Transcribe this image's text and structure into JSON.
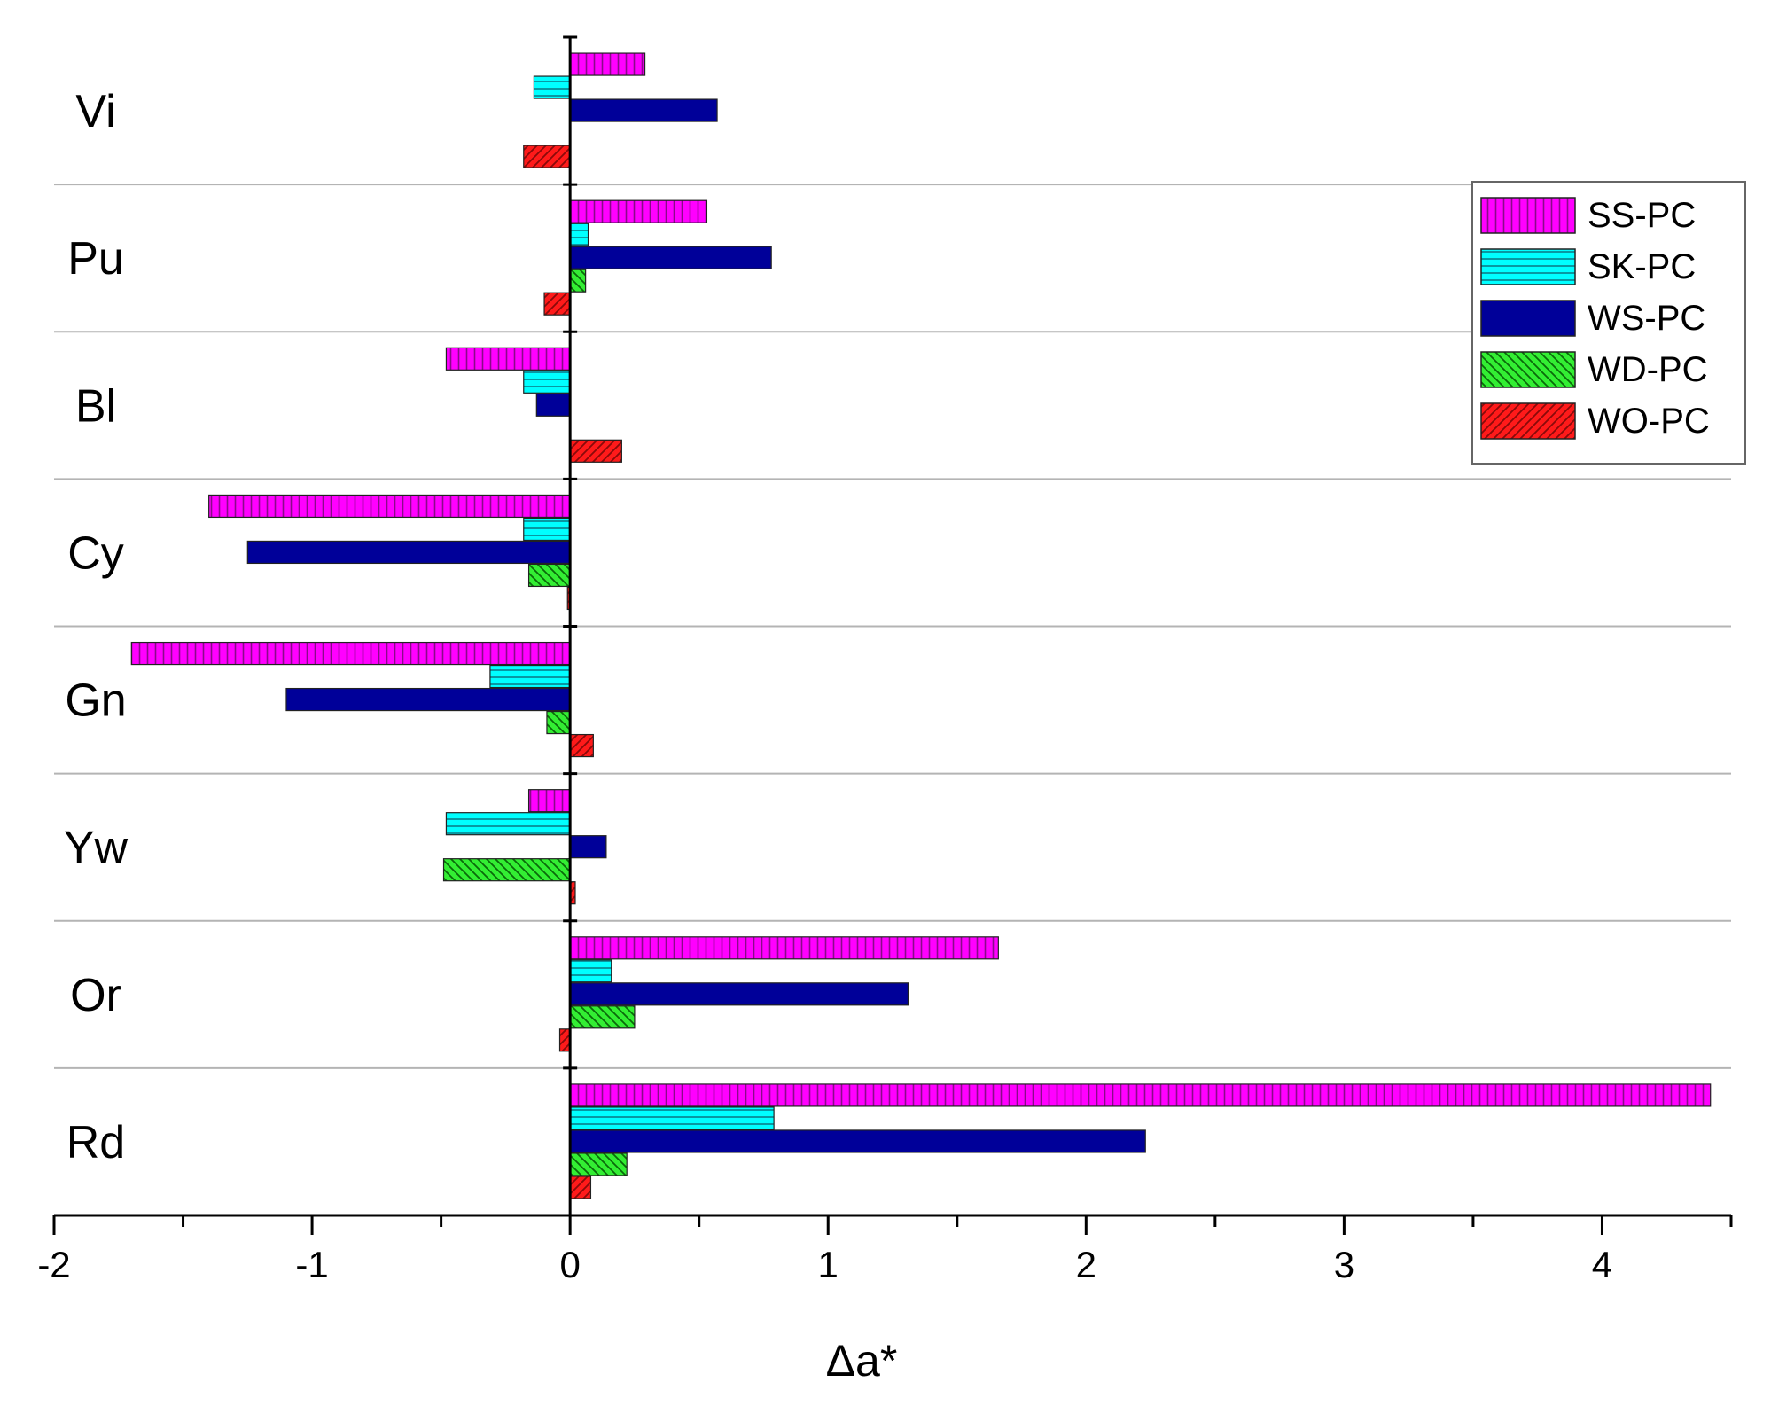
{
  "chart_data": {
    "type": "bar",
    "orientation": "horizontal",
    "xlabel": "Δa*",
    "xlim": [
      -2,
      4.5
    ],
    "xticks": [
      -2,
      -1,
      0,
      1,
      2,
      3,
      4
    ],
    "categories": [
      "Vi",
      "Pu",
      "Bl",
      "Cy",
      "Gn",
      "Yw",
      "Or",
      "Rd"
    ],
    "series": [
      {
        "name": "SS-PC",
        "color": "#ff00ff",
        "pattern": "vertical",
        "values": [
          0.29,
          0.53,
          -0.48,
          -1.4,
          -1.7,
          -0.16,
          1.66,
          4.42
        ]
      },
      {
        "name": "SK-PC",
        "color": "#00ffff",
        "pattern": "horizontal",
        "values": [
          -0.14,
          0.07,
          -0.18,
          -0.18,
          -0.31,
          -0.48,
          0.16,
          0.79
        ]
      },
      {
        "name": "WS-PC",
        "color": "#000099",
        "pattern": "solid",
        "values": [
          0.57,
          0.78,
          -0.13,
          -1.25,
          -1.1,
          0.14,
          1.31,
          2.23
        ]
      },
      {
        "name": "WD-PC",
        "color": "#00dd00",
        "pattern": "diag-down",
        "values": [
          0.0,
          0.06,
          0.0,
          -0.16,
          -0.09,
          -0.49,
          0.25,
          0.22
        ]
      },
      {
        "name": "WO-PC",
        "color": "#ff0000",
        "pattern": "diag-up",
        "values": [
          -0.18,
          -0.1,
          0.2,
          -0.01,
          0.09,
          0.02,
          -0.04,
          0.08
        ]
      }
    ],
    "grid": {
      "horizontal_separators": true
    },
    "legend": {
      "position": "top-right"
    }
  }
}
